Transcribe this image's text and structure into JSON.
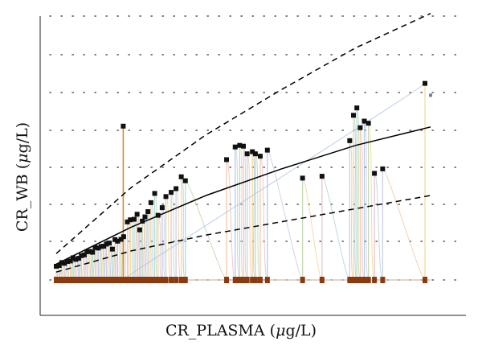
{
  "chart_data": {
    "type": "scatter",
    "xlabel_text": "CR_PLASMA (",
    "xlabel_unit_mu": "μ",
    "xlabel_unit_rest": "g/L)",
    "ylabel_text": "CR_WB (",
    "ylabel_unit_mu": "μ",
    "ylabel_unit_rest": "g/L)",
    "xlim": [
      0,
      100
    ],
    "ylim": [
      0,
      100
    ],
    "grid": true,
    "colors": {
      "points": "#111111",
      "baseline_markers": "#8b3a0f",
      "axes": "#222222",
      "grid": "#555555"
    },
    "series": [
      {
        "kind": "scatter",
        "points": [
          [
            0.0,
            5.2
          ],
          [
            0.8,
            5.5
          ],
          [
            1.5,
            6.6
          ],
          [
            2.2,
            6.3
          ],
          [
            3.0,
            7.0
          ],
          [
            3.8,
            7.2
          ],
          [
            4.5,
            8.4
          ],
          [
            5.2,
            7.8
          ],
          [
            6.0,
            8.2
          ],
          [
            6.7,
            9.2
          ],
          [
            7.5,
            9.5
          ],
          [
            8.2,
            10.7
          ],
          [
            9.0,
            10.8
          ],
          [
            9.7,
            10.5
          ],
          [
            10.4,
            12.3
          ],
          [
            11.2,
            12.1
          ],
          [
            12.0,
            12.7
          ],
          [
            12.7,
            12.8
          ],
          [
            13.4,
            13.6
          ],
          [
            14.2,
            14.0
          ],
          [
            15.0,
            11.7
          ],
          [
            15.7,
            15.3
          ],
          [
            16.4,
            14.7
          ],
          [
            17.3,
            15.4
          ],
          [
            18.0,
            16.4
          ],
          [
            19.0,
            22.0
          ],
          [
            19.8,
            22.8
          ],
          [
            20.8,
            23.0
          ],
          [
            21.6,
            24.9
          ],
          [
            22.3,
            19.0
          ],
          [
            23.0,
            22.3
          ],
          [
            23.7,
            23.9
          ],
          [
            24.5,
            25.9
          ],
          [
            25.3,
            29.3
          ],
          [
            26.3,
            32.8
          ],
          [
            27.2,
            24.5
          ],
          [
            28.3,
            27.4
          ],
          [
            29.3,
            31.6
          ],
          [
            30.7,
            33.2
          ],
          [
            32.0,
            34.6
          ],
          [
            33.4,
            39.1
          ],
          [
            34.5,
            37.6
          ],
          [
            45.5,
            45.6
          ],
          [
            47.8,
            50.4
          ],
          [
            49.0,
            51.0
          ],
          [
            50.0,
            50.7
          ],
          [
            51.0,
            47.8
          ],
          [
            52.4,
            48.6
          ],
          [
            53.2,
            47.8
          ],
          [
            54.5,
            46.9
          ],
          [
            56.4,
            49.2
          ],
          [
            65.8,
            38.6
          ],
          [
            71.0,
            39.3
          ],
          [
            78.4,
            52.8
          ],
          [
            79.4,
            62.4
          ],
          [
            80.3,
            65.2
          ],
          [
            81.2,
            57.7
          ],
          [
            82.3,
            60.2
          ],
          [
            83.4,
            59.4
          ],
          [
            85.0,
            40.4
          ],
          [
            87.2,
            42.1
          ],
          [
            98.5,
            74.5
          ]
        ]
      },
      {
        "kind": "outlier",
        "points": [
          [
            17.9,
            58.3
          ]
        ]
      },
      {
        "kind": "baseline",
        "y": 0
      },
      {
        "kind": "fit",
        "style": "solid",
        "points": [
          [
            0,
            6
          ],
          [
            20,
            20
          ],
          [
            40,
            32
          ],
          [
            60,
            42
          ],
          [
            80,
            51
          ],
          [
            100,
            58
          ]
        ]
      },
      {
        "kind": "fit",
        "style": "dashed",
        "points": [
          [
            0,
            10
          ],
          [
            20,
            35
          ],
          [
            40,
            55
          ],
          [
            60,
            72
          ],
          [
            80,
            88
          ],
          [
            100,
            101
          ]
        ]
      },
      {
        "kind": "fit",
        "style": "dashed",
        "points": [
          [
            0,
            3
          ],
          [
            20,
            11
          ],
          [
            40,
            17
          ],
          [
            60,
            22
          ],
          [
            80,
            27
          ],
          [
            100,
            32
          ]
        ]
      }
    ]
  }
}
